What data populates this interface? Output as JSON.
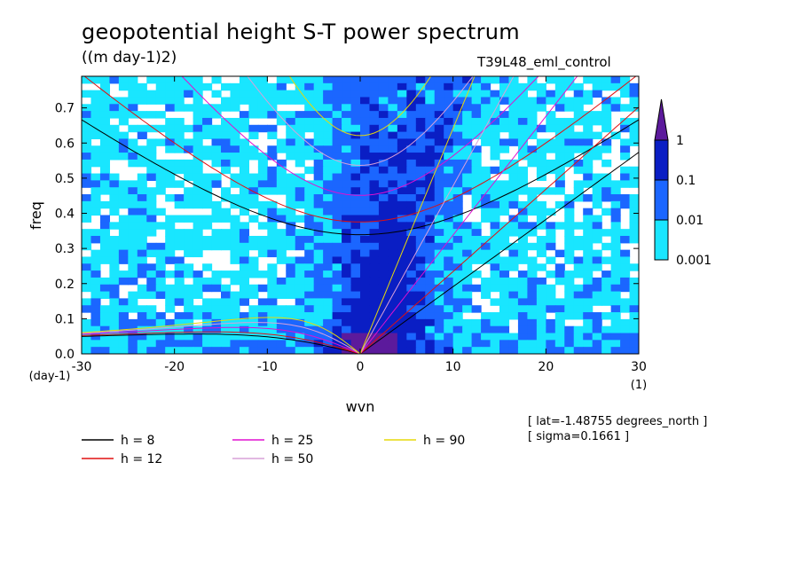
{
  "title": "geopotential height S-T power spectrum",
  "units": "((m day-1)2)",
  "run_name": "T39L48_eml_control",
  "info": [
    "[ lat=-1.48755 degrees_north ]",
    "[ sigma=0.1661 ]"
  ],
  "colors": {
    "level_1": "#19e6ff",
    "level_2": "#1b66ff",
    "level_3": "#0a1ec4",
    "level_4": "#5c1a9c"
  },
  "chart_data": {
    "type": "heatmap",
    "title": "geopotential height S-T power spectrum",
    "subtitle": "((m day-1)2)",
    "xlabel": "wvn",
    "x_units": "(1)",
    "ylabel": "freq",
    "y_units": "(day-1)",
    "xlim": [
      -30,
      30
    ],
    "ylim": [
      0,
      0.79
    ],
    "x_ticks": [
      -30,
      -20,
      -10,
      0,
      10,
      20,
      30
    ],
    "x_tick_labels": [
      "-30",
      "-20",
      "-10",
      "0",
      "10",
      "20",
      "30"
    ],
    "y_ticks": [
      0,
      0.1,
      0.2,
      0.3,
      0.4,
      0.5,
      0.6,
      0.7
    ],
    "y_tick_labels": [
      "0.0",
      "0.1",
      "0.2",
      "0.3",
      "0.4",
      "0.5",
      "0.6",
      "0.7"
    ],
    "colorbar": {
      "levels": [
        0.001,
        0.01,
        0.1,
        1
      ],
      "labels": [
        "0.001",
        "0.01",
        "0.1",
        "1"
      ],
      "colors": [
        "#19e6ff",
        "#1b66ff",
        "#0a1ec4",
        "#5c1a9c"
      ]
    },
    "dispersion_curves": [
      {
        "name": "h = 8",
        "h": 8,
        "color": "#000000"
      },
      {
        "name": "h = 12",
        "h": 12,
        "color": "#e01010"
      },
      {
        "name": "h = 25",
        "h": 25,
        "color": "#e010d0"
      },
      {
        "name": "h = 50",
        "h": 50,
        "color": "#d9a0d9"
      },
      {
        "name": "h = 90",
        "h": 90,
        "color": "#e6d80a"
      }
    ],
    "legend": {
      "placement": "bottom-left",
      "entries": [
        "h =  8",
        "h = 12",
        "h = 25",
        "h = 50",
        "h = 90"
      ]
    }
  }
}
